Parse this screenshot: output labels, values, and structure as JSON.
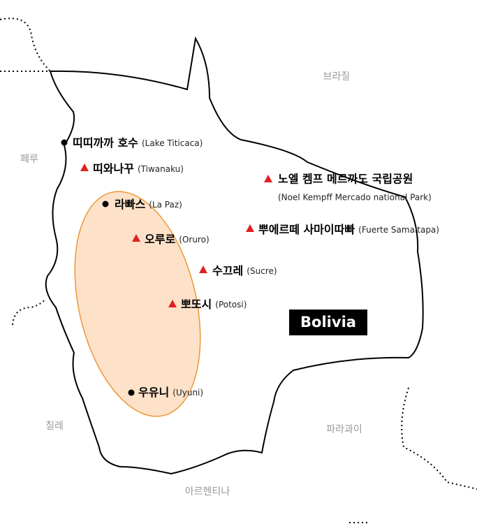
{
  "country": "Bolivia",
  "neighbors": [
    "브라질",
    "페루",
    "칠레",
    "파라과이",
    "아르헨티나"
  ],
  "places": [
    {
      "name": "띠띠까까 호수",
      "name_en": "(Lake Titicaca)"
    },
    {
      "name": "띠와나꾸",
      "name_en": "(Tiwanaku)"
    },
    {
      "name": "라빠스",
      "name_en": "(La Paz)"
    },
    {
      "name": "오루로",
      "name_en": "(Oruro)"
    },
    {
      "name": "수끄레",
      "name_en": "(Sucre)"
    },
    {
      "name": "뽀또시",
      "name_en": "(Potosi)"
    },
    {
      "name": "우유니",
      "name_en": "(Uyuni)"
    },
    {
      "name": "노엘 켐프 메르까도 국립공원",
      "name_en": "(Noel Kempff Mercado national Park)"
    },
    {
      "name": "뿌에르떼 사마이따빠",
      "name_en": "(Fuerte Samaitapa)"
    }
  ]
}
